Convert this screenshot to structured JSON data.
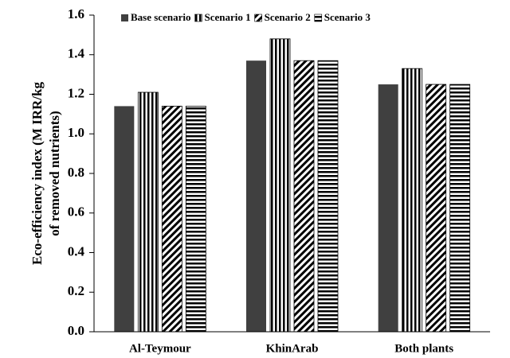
{
  "chart_data": {
    "type": "bar",
    "ylabel": [
      "Eco-efficiency index (M IRR/kg",
      "of removed nutrients)"
    ],
    "categories": [
      "Al-Teymour",
      "KhinArab",
      "Both plants"
    ],
    "series": [
      {
        "name": "Base scenario",
        "color": "#404040",
        "pattern": "solid",
        "values": [
          1.14,
          1.37,
          1.25
        ]
      },
      {
        "name": "Scenario 1",
        "color": "#000000",
        "pattern": "vertical",
        "values": [
          1.21,
          1.48,
          1.33
        ]
      },
      {
        "name": "Scenario 2",
        "color": "#000000",
        "pattern": "diagonal",
        "values": [
          1.14,
          1.37,
          1.25
        ]
      },
      {
        "name": "Scenario 3",
        "color": "#000000",
        "pattern": "horizontal",
        "values": [
          1.14,
          1.37,
          1.25
        ]
      }
    ],
    "ylim": [
      0,
      1.6
    ],
    "yticks": [
      {
        "value": 0,
        "label": "0.0"
      },
      0.2,
      0.4,
      0.6,
      0.8,
      {
        "value": 1,
        "label": "1.0"
      },
      1.2,
      1.4,
      1.6
    ],
    "legend": "top"
  }
}
